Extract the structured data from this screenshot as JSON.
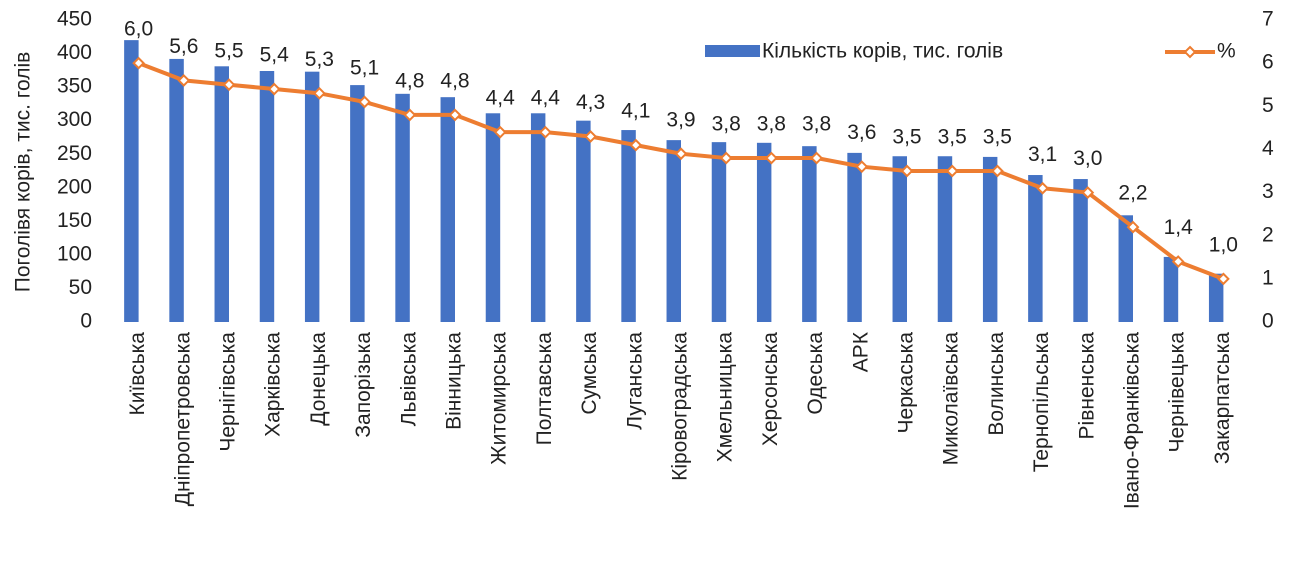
{
  "chart_data": {
    "type": "bar+line",
    "categories": [
      "Київська",
      "Дніпропетровська",
      "Чернігівська",
      "Харківська",
      "Донецька",
      "Запорізька",
      "Львівська",
      "Вінницька",
      "Житомирська",
      "Полтавська",
      "Сумська",
      "Луганська",
      "Кіровоградська",
      "Хмельницька",
      "Херсонська",
      "Одеська",
      "АРК",
      "Черкаська",
      "Миколаївська",
      "Волинська",
      "Тернопільська",
      "Рівненська",
      "Івано-Франківська",
      "Чернівецька",
      "Закарпатська"
    ],
    "series": [
      {
        "name": "Кількість корів, тис. голів",
        "type": "bar",
        "color": "#4472c4",
        "values": [
          420,
          392,
          381,
          374,
          373,
          353,
          340,
          335,
          311,
          311,
          300,
          286,
          271,
          268,
          267,
          262,
          252,
          247,
          247,
          246,
          219,
          213,
          159,
          97,
          72
        ]
      },
      {
        "name": "%",
        "type": "line",
        "axis": "y2",
        "color": "#ed7d31",
        "values": [
          6.0,
          5.6,
          5.5,
          5.4,
          5.3,
          5.1,
          4.8,
          4.8,
          4.4,
          4.4,
          4.3,
          4.1,
          3.9,
          3.8,
          3.8,
          3.8,
          3.6,
          3.5,
          3.5,
          3.5,
          3.1,
          3.0,
          2.2,
          1.4,
          1.0
        ],
        "value_labels": [
          "6,0",
          "5,6",
          "5,5",
          "5,4",
          "5,3",
          "5,1",
          "4,8",
          "4,8",
          "4,4",
          "4,4",
          "4,3",
          "4,1",
          "3,9",
          "3,8",
          "3,8",
          "3,8",
          "3,6",
          "3,5",
          "3,5",
          "3,5",
          "3,1",
          "3,0",
          "2,2",
          "1,4",
          "1,0"
        ]
      }
    ],
    "y_label": "Поголівя корів, тис. голів",
    "ylim": [
      0,
      450
    ],
    "yticks": [
      0,
      50,
      100,
      150,
      200,
      250,
      300,
      350,
      400,
      450
    ],
    "y2lim": [
      0,
      7
    ],
    "y2ticks": [
      0,
      1,
      2,
      3,
      4,
      5,
      6,
      7
    ],
    "legend": "top-right",
    "grid": false
  }
}
